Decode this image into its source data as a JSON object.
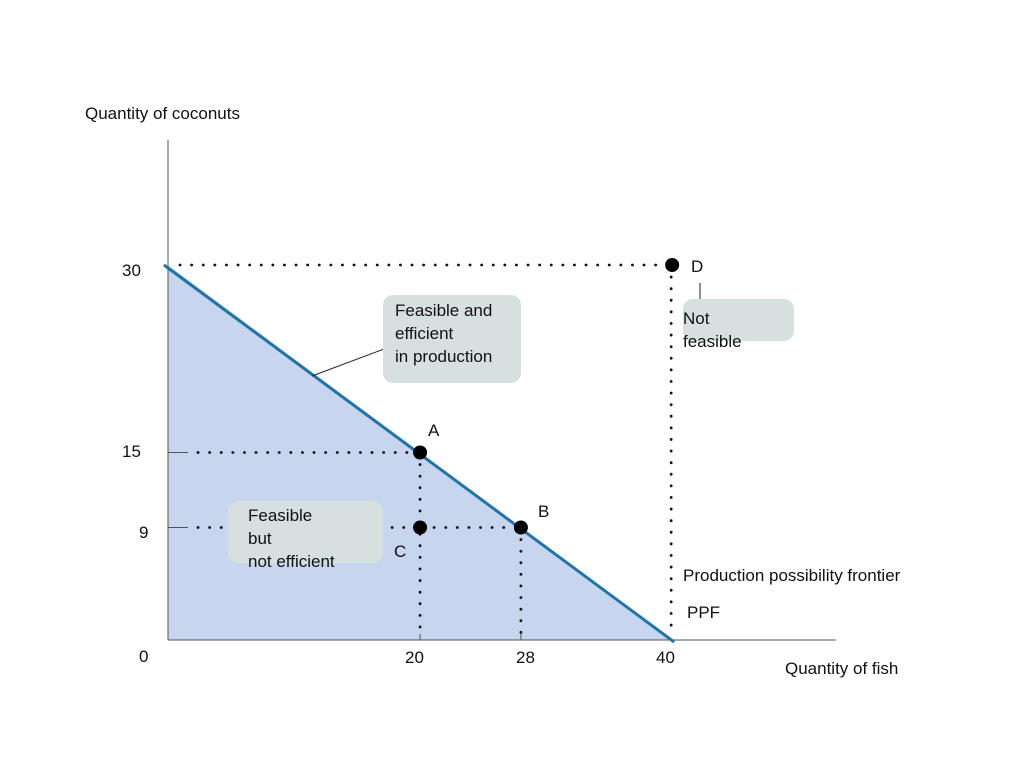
{
  "chart_data": {
    "type": "area",
    "ylabel": "Quantity of coconuts",
    "xlabel": "Quantity of fish",
    "xlim": [
      0,
      53
    ],
    "ylim": [
      0,
      40
    ],
    "x_ticks": [
      "20",
      "28",
      "40"
    ],
    "y_ticks": [
      "30",
      "15",
      "9"
    ],
    "origin_label": "0",
    "series": [
      {
        "x": [
          0,
          40
        ],
        "y": [
          30,
          0
        ]
      }
    ],
    "fill": "below-frontier",
    "points": [
      {
        "label": "A",
        "x": 20,
        "y": 15
      },
      {
        "label": "B",
        "x": 28,
        "y": 9
      },
      {
        "label": "C",
        "x": 20,
        "y": 9
      },
      {
        "label": "D",
        "x": 40,
        "y": 30
      }
    ],
    "annotations": {
      "efficient": [
        "Feasible and",
        "efficient",
        "in production"
      ],
      "not_feasible": [
        "Not",
        "feasible"
      ],
      "inefficient": [
        "Feasible",
        "but",
        "not efficient"
      ],
      "frontier": "Production possibility frontier",
      "ppf": "PPF"
    },
    "colors": {
      "frontier": "#1f74a8",
      "fill": "#c8d5ee",
      "callout": "#d6e0df"
    },
    "grid": false
  }
}
